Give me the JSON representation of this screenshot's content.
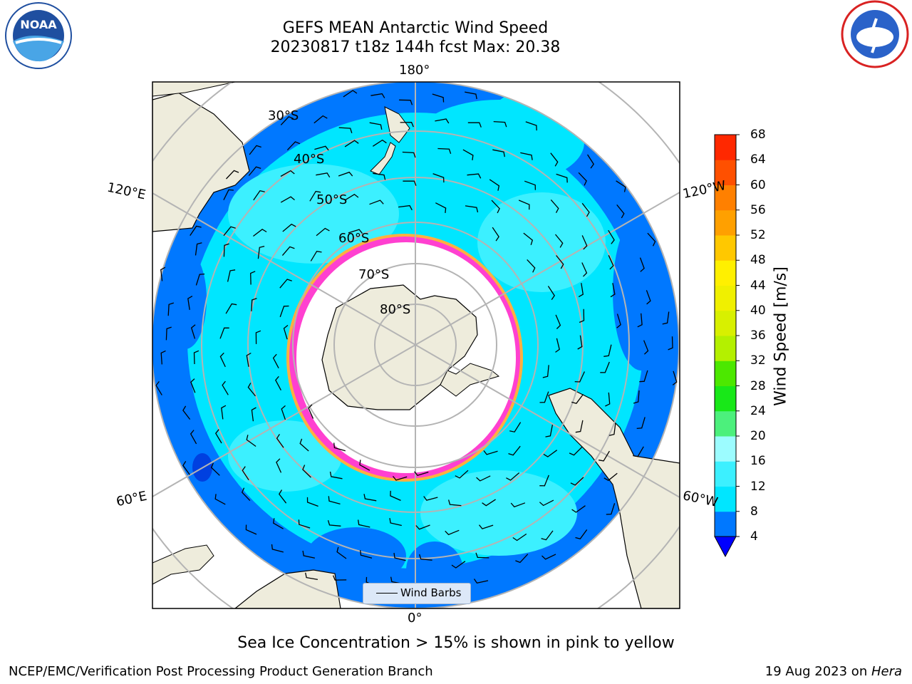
{
  "header": {
    "title_line1": "GEFS MEAN Antarctic Wind Speed",
    "title_line2": "20230817 t18z 144h fcst   Max: 20.38"
  },
  "map": {
    "projection": "south polar stereographic",
    "longitude_labels": [
      "180°",
      "120°E",
      "120°W",
      "60°E",
      "60°W",
      "0°"
    ],
    "latitude_labels": [
      "30°S",
      "40°S",
      "50°S",
      "60°S",
      "70°S",
      "80°S"
    ],
    "legend_entry": "Wind Barbs",
    "colors": {
      "land": "#eeecdc",
      "sea_ice": "#ffffff",
      "ice_edge": "#ff40d0",
      "graticule": "#b4b4b4"
    }
  },
  "colorbar": {
    "label": "Wind Speed [m/s]",
    "ticks": [
      "4",
      "8",
      "12",
      "16",
      "20",
      "24",
      "28",
      "32",
      "36",
      "40",
      "44",
      "48",
      "52",
      "56",
      "60",
      "64",
      "68"
    ],
    "colors": [
      "#0078ff",
      "#00e6ff",
      "#3cf0ff",
      "#9cfcff",
      "#4cf07c",
      "#18e818",
      "#4ce800",
      "#b4f000",
      "#d8f000",
      "#f0f000",
      "#fff000",
      "#ffc800",
      "#ffa000",
      "#ff8000",
      "#ff5000",
      "#ff2800",
      "#ff0000"
    ],
    "under_color": "#0000ff"
  },
  "logos": {
    "left": "NOAA",
    "right": "NATIONAL WEATHER SERVICE"
  },
  "footer": {
    "note": "Sea Ice Concentration > 15% is shown in pink to yellow",
    "left": "NCEP/EMC/Verification Post Processing Product Generation Branch",
    "right_date": "19 Aug 2023 on ",
    "right_machine": "Hera"
  }
}
